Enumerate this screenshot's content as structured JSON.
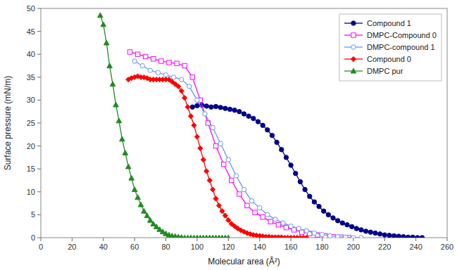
{
  "chart_data": {
    "type": "line",
    "xlabel": "Molecular area (Å²)",
    "ylabel": "Surface pressure (mN/m)",
    "xlim": [
      0,
      260
    ],
    "ylim": [
      0,
      50
    ],
    "xticks": [
      0,
      20,
      40,
      60,
      80,
      100,
      120,
      140,
      160,
      180,
      200,
      220,
      240,
      260
    ],
    "yticks": [
      0,
      5,
      10,
      15,
      20,
      25,
      30,
      35,
      40,
      45,
      50
    ],
    "grid": false,
    "legend": "upper right",
    "series": [
      {
        "name": "Compound 1",
        "color": "#00008B",
        "marker": "circle",
        "x": [
          97,
          100,
          103,
          106,
          109,
          112,
          115,
          118,
          121,
          124,
          127,
          130,
          133,
          136,
          139,
          142,
          145,
          148,
          151,
          154,
          157,
          160,
          163,
          166,
          169,
          172,
          175,
          178,
          181,
          184,
          187,
          190,
          193,
          196,
          199,
          202,
          205,
          208,
          211,
          214,
          217,
          220,
          223,
          226,
          229,
          232,
          235,
          238,
          241,
          244
        ],
        "values": [
          28.5,
          28.8,
          28.9,
          28.7,
          28.5,
          28.6,
          28.4,
          28.2,
          28.0,
          27.8,
          27.5,
          27.0,
          26.5,
          26.0,
          25.3,
          24.5,
          23.5,
          22.3,
          20.8,
          19.2,
          17.5,
          15.8,
          14.0,
          12.2,
          10.5,
          9.0,
          7.8,
          6.8,
          5.8,
          5.0,
          4.3,
          3.7,
          3.2,
          2.8,
          2.4,
          2.0,
          1.7,
          1.4,
          1.2,
          1.0,
          0.8,
          0.6,
          0.5,
          0.4,
          0.3,
          0.2,
          0.1,
          0.1,
          0.0,
          0.0
        ]
      },
      {
        "name": "DMPC-Compound 0",
        "color": "#FF00FF",
        "marker": "square-open",
        "x": [
          57,
          62,
          67,
          72,
          77,
          82,
          87,
          92,
          97,
          102,
          107,
          112,
          117,
          122,
          127,
          132,
          137,
          142,
          147,
          152,
          157,
          162,
          167,
          172,
          177,
          182,
          187,
          192,
          197
        ],
        "values": [
          40.5,
          40.0,
          39.5,
          39.0,
          38.5,
          38.2,
          38.0,
          37.5,
          35.0,
          30.0,
          25.0,
          20.0,
          16.0,
          12.5,
          9.5,
          7.0,
          5.5,
          4.5,
          3.5,
          2.8,
          2.2,
          1.7,
          1.2,
          0.9,
          0.6,
          0.4,
          0.2,
          0.1,
          0.0
        ]
      },
      {
        "name": "DMPC-compound 1",
        "color": "#6495ED",
        "marker": "circle-open",
        "x": [
          60,
          65,
          70,
          75,
          80,
          85,
          90,
          95,
          100,
          105,
          110,
          115,
          120,
          125,
          130,
          135,
          140,
          145,
          150,
          155,
          160,
          165,
          170,
          175,
          180,
          185,
          190,
          195,
          200,
          205
        ],
        "values": [
          38.5,
          37.5,
          36.5,
          36.0,
          35.5,
          35.0,
          34.5,
          33.0,
          30.0,
          27.0,
          24.0,
          20.5,
          17.0,
          13.5,
          10.5,
          8.0,
          6.5,
          5.0,
          4.0,
          3.2,
          2.5,
          2.0,
          1.5,
          1.0,
          0.7,
          0.4,
          0.2,
          0.1,
          0.0,
          0.0
        ]
      },
      {
        "name": "Compound 0",
        "color": "#FF0000",
        "marker": "diamond",
        "x": [
          56,
          58,
          60,
          62,
          64,
          66,
          68,
          70,
          72,
          74,
          76,
          78,
          80,
          82,
          84,
          86,
          88,
          90,
          92,
          94,
          96,
          98,
          100,
          102,
          104,
          106,
          108,
          110,
          112,
          114,
          116,
          118,
          120,
          122,
          124,
          126,
          128,
          130,
          132,
          134,
          136,
          138,
          140,
          142,
          144,
          146,
          148,
          150,
          152,
          154,
          156,
          158,
          160,
          162,
          164,
          166,
          168,
          170
        ],
        "values": [
          34.5,
          34.8,
          35.0,
          35.2,
          35.0,
          35.0,
          34.8,
          34.5,
          34.5,
          34.5,
          34.5,
          34.5,
          34.5,
          34.5,
          34.0,
          33.5,
          33.0,
          32.0,
          30.5,
          28.5,
          26.5,
          24.5,
          22.0,
          19.5,
          17.0,
          14.5,
          12.5,
          10.5,
          8.5,
          7.0,
          5.8,
          4.8,
          3.8,
          3.0,
          2.5,
          2.0,
          1.6,
          1.3,
          1.0,
          0.8,
          0.6,
          0.5,
          0.4,
          0.3,
          0.2,
          0.2,
          0.1,
          0.1,
          0.1,
          0.1,
          0.0,
          0.0,
          0.0,
          0.0,
          0.0,
          0.0,
          0.0,
          0.0
        ]
      },
      {
        "name": "DMPC pur",
        "color": "#228B22",
        "marker": "triangle",
        "x": [
          38,
          40,
          42,
          44,
          46,
          48,
          50,
          52,
          54,
          56,
          58,
          60,
          62,
          64,
          66,
          68,
          70,
          72,
          74,
          76,
          78,
          80,
          82,
          84,
          86,
          88,
          90,
          92,
          94,
          96,
          98,
          100,
          102,
          104,
          106,
          108,
          110,
          112,
          114,
          116,
          118,
          120
        ],
        "values": [
          48.5,
          46.5,
          42.5,
          37.5,
          33.5,
          29.0,
          25.5,
          21.5,
          18.5,
          15.5,
          13.0,
          10.5,
          8.8,
          7.2,
          5.8,
          4.8,
          3.8,
          3.0,
          2.4,
          1.8,
          1.3,
          0.9,
          0.6,
          0.4,
          0.3,
          0.2,
          0.1,
          0.0,
          0.0,
          0.0,
          0.0,
          0.0,
          0.0,
          0.0,
          0.0,
          0.0,
          0.0,
          0.0,
          0.0,
          0.0,
          0.0,
          0.0
        ]
      }
    ]
  }
}
